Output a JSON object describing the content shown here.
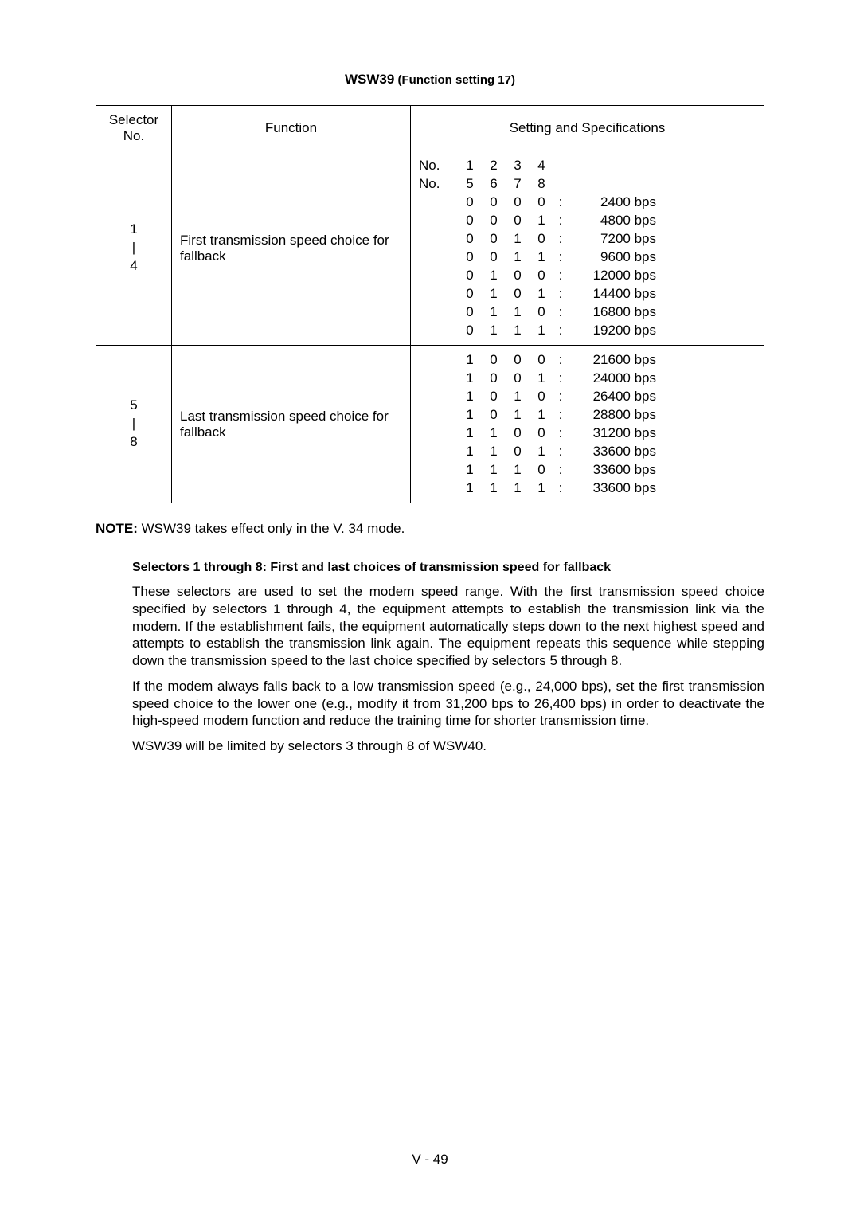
{
  "title": {
    "bold": "WSW39",
    "normal": " (Function setting 17)"
  },
  "table": {
    "headers": {
      "selector": "Selector\nNo.",
      "function": "Function",
      "spec": "Setting and Specifications"
    },
    "no_header_rows": [
      [
        "No.",
        "1",
        "2",
        "3",
        "4"
      ],
      [
        "No.",
        "5",
        "6",
        "7",
        "8"
      ]
    ],
    "rows": [
      {
        "selector": "1\n|\n4",
        "function": "First transmission speed choice for fallback",
        "specs": [
          {
            "bits": [
              "0",
              "0",
              "0",
              "0"
            ],
            "label": "2400 bps"
          },
          {
            "bits": [
              "0",
              "0",
              "0",
              "1"
            ],
            "label": "4800 bps"
          },
          {
            "bits": [
              "0",
              "0",
              "1",
              "0"
            ],
            "label": "7200 bps"
          },
          {
            "bits": [
              "0",
              "0",
              "1",
              "1"
            ],
            "label": "9600 bps"
          },
          {
            "bits": [
              "0",
              "1",
              "0",
              "0"
            ],
            "label": "12000 bps"
          },
          {
            "bits": [
              "0",
              "1",
              "0",
              "1"
            ],
            "label": "14400 bps"
          },
          {
            "bits": [
              "0",
              "1",
              "1",
              "0"
            ],
            "label": "16800 bps"
          },
          {
            "bits": [
              "0",
              "1",
              "1",
              "1"
            ],
            "label": "19200 bps"
          }
        ]
      },
      {
        "selector": "5\n|\n8",
        "function": "Last transmission speed choice for fallback",
        "specs": [
          {
            "bits": [
              "1",
              "0",
              "0",
              "0"
            ],
            "label": "21600 bps"
          },
          {
            "bits": [
              "1",
              "0",
              "0",
              "1"
            ],
            "label": "24000 bps"
          },
          {
            "bits": [
              "1",
              "0",
              "1",
              "0"
            ],
            "label": "26400 bps"
          },
          {
            "bits": [
              "1",
              "0",
              "1",
              "1"
            ],
            "label": "28800 bps"
          },
          {
            "bits": [
              "1",
              "1",
              "0",
              "0"
            ],
            "label": "31200 bps"
          },
          {
            "bits": [
              "1",
              "1",
              "0",
              "1"
            ],
            "label": "33600 bps"
          },
          {
            "bits": [
              "1",
              "1",
              "1",
              "0"
            ],
            "label": "33600 bps"
          },
          {
            "bits": [
              "1",
              "1",
              "1",
              "1"
            ],
            "label": "33600 bps"
          }
        ]
      }
    ]
  },
  "note": {
    "label": "NOTE:",
    "text": "  WSW39 takes effect only in the V. 34 mode."
  },
  "subheading": "Selectors 1 through 8:   First and last choices of transmission speed for fallback",
  "paragraphs": [
    "These selectors are used to set the modem speed range.  With the first transmission speed choice specified by selectors 1 through 4, the equipment attempts to establish the transmission link via the modem.  If the establishment fails, the equipment automatically steps down to the next highest speed and attempts to establish the transmission link again.  The equipment repeats this sequence while stepping down the transmission speed to the last choice specified by selectors 5 through 8.",
    "If the modem always falls back to a low transmission speed (e.g., 24,000 bps), set the first transmission speed choice to the lower one (e.g., modify it from 31,200 bps to 26,400 bps) in order to deactivate the high-speed modem function and reduce the training time for shorter transmission time.",
    "WSW39  will be limited by selectors 3 through 8 of WSW40."
  ],
  "page_number": "V - 49"
}
